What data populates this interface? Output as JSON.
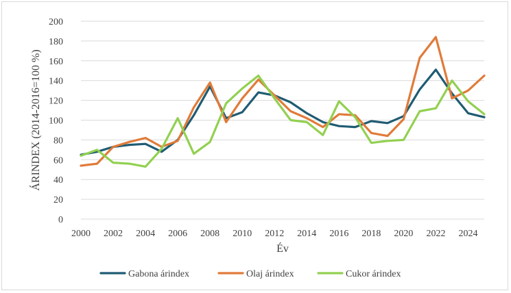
{
  "chart_data": {
    "type": "line",
    "title": "",
    "xlabel": "Év",
    "ylabel": "ÁRINDEX (2014-2016=100 %)",
    "x": [
      2000,
      2001,
      2002,
      2003,
      2004,
      2005,
      2006,
      2007,
      2008,
      2009,
      2010,
      2011,
      2012,
      2013,
      2014,
      2015,
      2016,
      2017,
      2018,
      2019,
      2020,
      2021,
      2022,
      2023,
      2024,
      2025
    ],
    "x_ticks": [
      2000,
      2002,
      2004,
      2006,
      2008,
      2010,
      2012,
      2014,
      2016,
      2018,
      2020,
      2022,
      2024
    ],
    "y_ticks": [
      0,
      20,
      40,
      60,
      80,
      100,
      120,
      140,
      160,
      180,
      200
    ],
    "xlim": [
      2000,
      2025
    ],
    "ylim": [
      0,
      200
    ],
    "grid": "horizontal",
    "legend_position": "bottom",
    "series": [
      {
        "name": "Gabona árindex",
        "color": "#1f5c73",
        "values": [
          65,
          68,
          73,
          75,
          76,
          68,
          80,
          105,
          134,
          102,
          108,
          128,
          125,
          118,
          107,
          98,
          94,
          93,
          99,
          97,
          104,
          131,
          151,
          127,
          107,
          103
        ]
      },
      {
        "name": "Olaj árindex",
        "color": "#e07b39",
        "values": [
          54,
          56,
          73,
          78,
          82,
          73,
          79,
          113,
          138,
          98,
          122,
          141,
          125,
          109,
          102,
          93,
          106,
          105,
          87,
          84,
          101,
          163,
          184,
          122,
          130,
          145
        ]
      },
      {
        "name": "Cukor árindex",
        "color": "#92d050",
        "values": [
          64,
          70,
          57,
          56,
          53,
          71,
          102,
          66,
          78,
          117,
          132,
          145,
          122,
          100,
          98,
          85,
          119,
          103,
          77,
          79,
          80,
          109,
          112,
          140,
          119,
          106
        ]
      }
    ]
  }
}
